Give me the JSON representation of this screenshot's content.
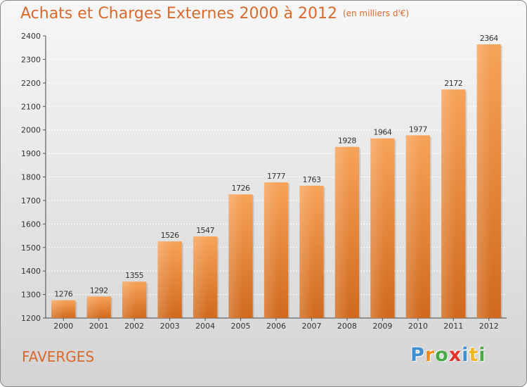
{
  "chart_data": {
    "type": "bar",
    "title": "Achats et Charges Externes 2000 à 2012",
    "unit_note": "(en milliers d'€)",
    "categories": [
      "2000",
      "2001",
      "2002",
      "2003",
      "2004",
      "2005",
      "2006",
      "2007",
      "2008",
      "2009",
      "2010",
      "2011",
      "2012"
    ],
    "values": [
      1276,
      1292,
      1355,
      1526,
      1547,
      1726,
      1777,
      1763,
      1928,
      1964,
      1977,
      2172,
      2364
    ],
    "ylim": [
      1200,
      2400
    ],
    "yticks": [
      1200,
      1300,
      1400,
      1500,
      1600,
      1700,
      1800,
      1900,
      2000,
      2100,
      2200,
      2300,
      2400
    ],
    "grid": true,
    "bar_color_top": "#f7a35a",
    "bar_color_bottom": "#d0691d"
  },
  "place_name": "FAVERGES",
  "logo": {
    "letters": [
      {
        "char": "P",
        "color": "#3f8fd2"
      },
      {
        "char": "r",
        "color": "#f08c1e"
      },
      {
        "char": "o",
        "color": "#49a942"
      },
      {
        "char": "x",
        "color": "#e2302b"
      },
      {
        "char": "i",
        "color": "#3f8fd2"
      },
      {
        "char": "t",
        "color": "#f0b71e"
      },
      {
        "char": "i",
        "color": "#49a942"
      }
    ]
  }
}
